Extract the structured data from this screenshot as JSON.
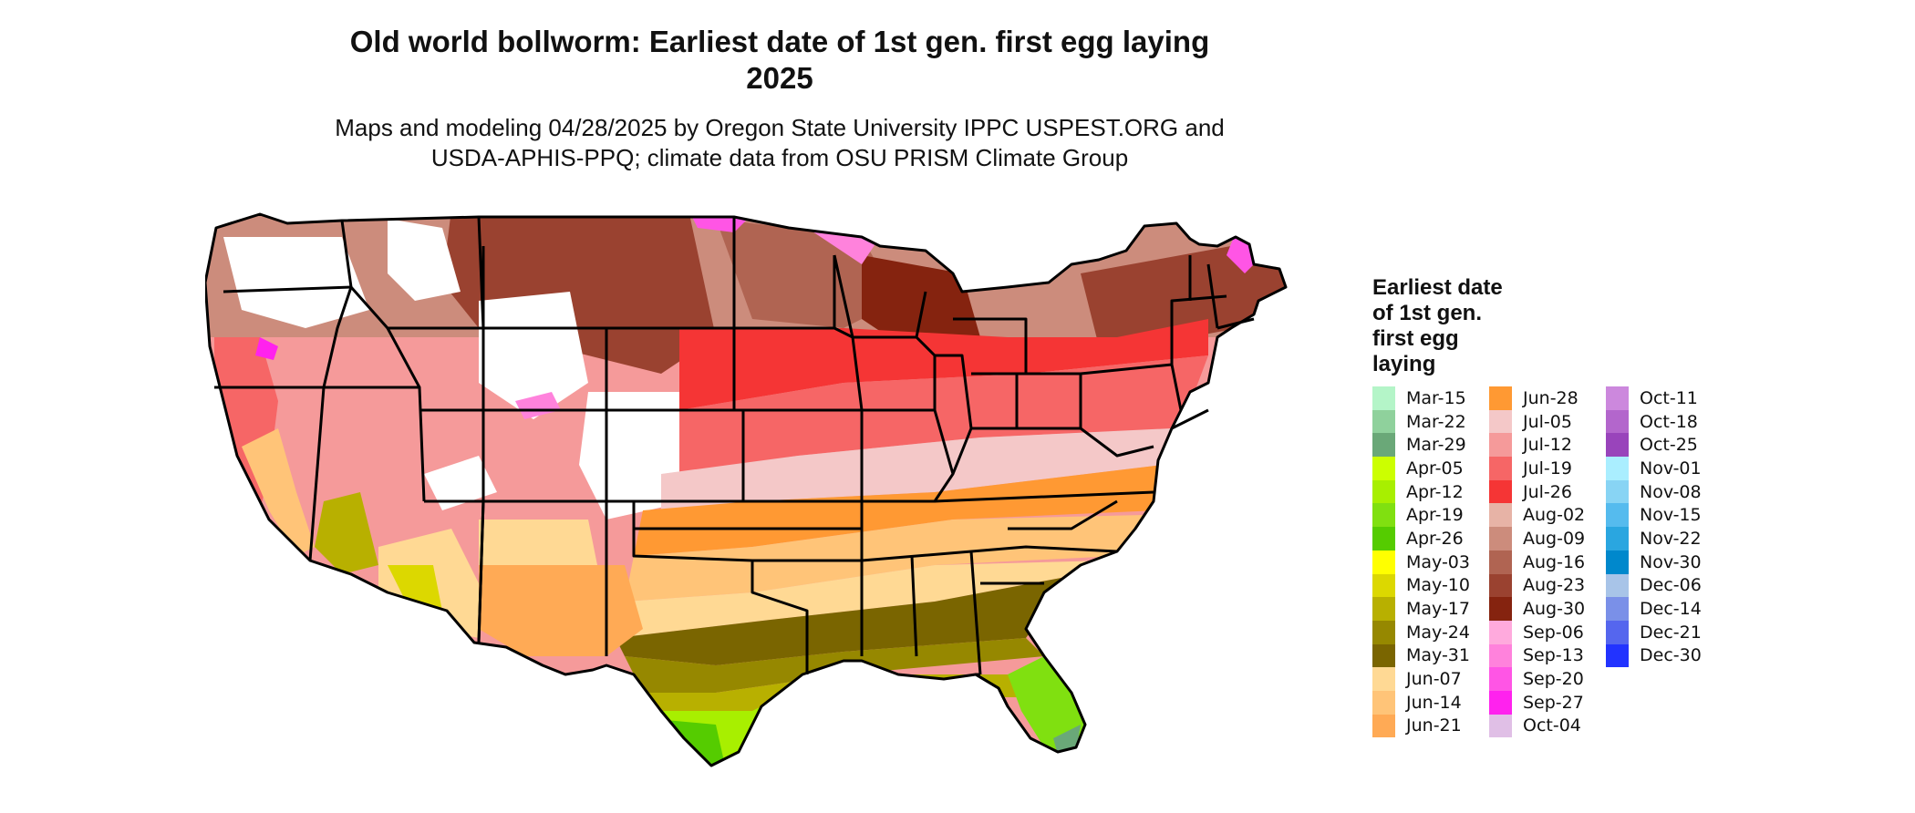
{
  "title": {
    "line1": "Old world bollworm: Earliest date of 1st gen. first egg laying",
    "line2": "2025"
  },
  "subtitle": {
    "line1": "Maps and modeling 04/28/2025 by Oregon State University IPPC USPEST.ORG and",
    "line2": "USDA-APHIS-PPQ; climate data from OSU PRISM Climate Group"
  },
  "legend": {
    "title_lines": [
      "Earliest date",
      "of 1st gen.",
      "first egg",
      "laying"
    ],
    "columns": [
      [
        {
          "label": "Mar-15",
          "color": "#b4f5c8"
        },
        {
          "label": "Mar-22",
          "color": "#8fd19c"
        },
        {
          "label": "Mar-29",
          "color": "#6aa878"
        },
        {
          "label": "Apr-05",
          "color": "#ccff00"
        },
        {
          "label": "Apr-12",
          "color": "#a8ef00"
        },
        {
          "label": "Apr-19",
          "color": "#80e010"
        },
        {
          "label": "Apr-26",
          "color": "#55cc00"
        },
        {
          "label": "May-03",
          "color": "#ffff00"
        },
        {
          "label": "May-10",
          "color": "#dcd800"
        },
        {
          "label": "May-17",
          "color": "#b8b000"
        },
        {
          "label": "May-24",
          "color": "#968800"
        },
        {
          "label": "May-31",
          "color": "#7a6500"
        },
        {
          "label": "Jun-07",
          "color": "#ffd994"
        },
        {
          "label": "Jun-14",
          "color": "#ffc478"
        },
        {
          "label": "Jun-21",
          "color": "#ffaa55"
        }
      ],
      [
        {
          "label": "Jun-28",
          "color": "#ff9933"
        },
        {
          "label": "Jul-05",
          "color": "#f4c8c8"
        },
        {
          "label": "Jul-12",
          "color": "#f59a9a"
        },
        {
          "label": "Jul-19",
          "color": "#f66666"
        },
        {
          "label": "Jul-26",
          "color": "#f53535"
        },
        {
          "label": "Aug-02",
          "color": "#e7b3a6"
        },
        {
          "label": "Aug-09",
          "color": "#cc8c7c"
        },
        {
          "label": "Aug-16",
          "color": "#b06452"
        },
        {
          "label": "Aug-23",
          "color": "#9a4230"
        },
        {
          "label": "Aug-30",
          "color": "#85230f"
        },
        {
          "label": "Sep-06",
          "color": "#ffaadd"
        },
        {
          "label": "Sep-13",
          "color": "#ff82dc"
        },
        {
          "label": "Sep-20",
          "color": "#ff55e5"
        },
        {
          "label": "Sep-27",
          "color": "#ff22ee"
        },
        {
          "label": "Oct-04",
          "color": "#e0bfe6"
        }
      ],
      [
        {
          "label": "Oct-11",
          "color": "#cc88dd"
        },
        {
          "label": "Oct-18",
          "color": "#b366cc"
        },
        {
          "label": "Oct-25",
          "color": "#9944bb"
        },
        {
          "label": "Nov-01",
          "color": "#aaeeff"
        },
        {
          "label": "Nov-08",
          "color": "#88d4f4"
        },
        {
          "label": "Nov-15",
          "color": "#55bbee"
        },
        {
          "label": "Nov-22",
          "color": "#2aa6e0"
        },
        {
          "label": "Nov-30",
          "color": "#0088cc"
        },
        {
          "label": "Dec-06",
          "color": "#a8c4e8"
        },
        {
          "label": "Dec-14",
          "color": "#7a90e8"
        },
        {
          "label": "Dec-21",
          "color": "#5566ee"
        },
        {
          "label": "Dec-30",
          "color": "#2233ff"
        }
      ]
    ]
  },
  "map_colors": {
    "none": "#ffffff",
    "border": "#000000"
  }
}
